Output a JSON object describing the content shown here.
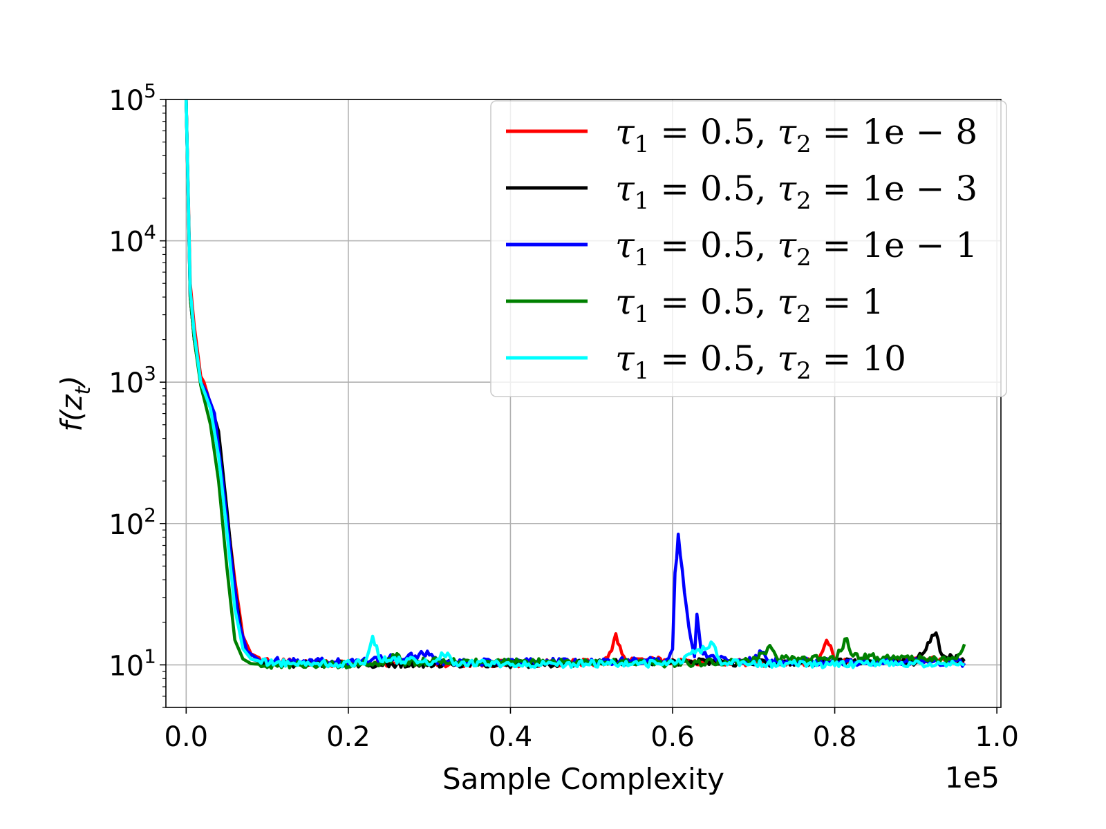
{
  "chart_data": {
    "type": "line",
    "title": "",
    "xlabel": "Sample Complexity",
    "ylabel": "f(z_t)",
    "x_offset_label": "1e5",
    "xlim": [
      -0.025,
      1.005
    ],
    "ylim": [
      5,
      100000
    ],
    "yscale": "log",
    "grid": true,
    "legend_position": "top-right",
    "x_ticks": [
      0.0,
      0.2,
      0.4,
      0.6,
      0.8,
      1.0
    ],
    "x_tick_labels": [
      "0.0",
      "0.2",
      "0.4",
      "0.6",
      "0.8",
      "1.0"
    ],
    "y_ticks": [
      10,
      100,
      1000,
      10000,
      100000
    ],
    "y_tick_labels": [
      {
        "base": "10",
        "exp": "1"
      },
      {
        "base": "10",
        "exp": "2"
      },
      {
        "base": "10",
        "exp": "3"
      },
      {
        "base": "10",
        "exp": "4"
      },
      {
        "base": "10",
        "exp": "5"
      }
    ],
    "series": [
      {
        "name": "τ1 = 0.5, τ2 = 1e − 8",
        "legend": {
          "tau1": "0.5",
          "tau2": "1e − 8"
        },
        "color": "#ff0000",
        "points": [
          [
            0.0,
            100000
          ],
          [
            0.005,
            5000
          ],
          [
            0.01,
            2500
          ],
          [
            0.018,
            1100
          ],
          [
            0.022,
            1000
          ],
          [
            0.03,
            700
          ],
          [
            0.04,
            350
          ],
          [
            0.05,
            120
          ],
          [
            0.06,
            40
          ],
          [
            0.07,
            16
          ],
          [
            0.08,
            12
          ],
          [
            0.1,
            10.5
          ],
          [
            0.2,
            10.2
          ],
          [
            0.3,
            10.3
          ],
          [
            0.4,
            10.2
          ],
          [
            0.5,
            10.4
          ],
          [
            0.52,
            10.8
          ],
          [
            0.53,
            16
          ],
          [
            0.54,
            11
          ],
          [
            0.6,
            10.6
          ],
          [
            0.7,
            10.3
          ],
          [
            0.78,
            10.5
          ],
          [
            0.79,
            15.5
          ],
          [
            0.8,
            10.8
          ],
          [
            0.9,
            10.6
          ],
          [
            0.93,
            10.9
          ],
          [
            0.96,
            10.4
          ]
        ]
      },
      {
        "name": "τ1 = 0.5, τ2 = 1e − 3",
        "legend": {
          "tau1": "0.5",
          "tau2": "1e − 3"
        },
        "color": "#000000",
        "points": [
          [
            0.0,
            100000
          ],
          [
            0.005,
            4000
          ],
          [
            0.01,
            2000
          ],
          [
            0.018,
            1000
          ],
          [
            0.03,
            700
          ],
          [
            0.04,
            450
          ],
          [
            0.05,
            130
          ],
          [
            0.06,
            35
          ],
          [
            0.07,
            14
          ],
          [
            0.08,
            11
          ],
          [
            0.1,
            10.2
          ],
          [
            0.2,
            10.1
          ],
          [
            0.3,
            10.2
          ],
          [
            0.4,
            10.1
          ],
          [
            0.5,
            10.3
          ],
          [
            0.6,
            10.5
          ],
          [
            0.7,
            10.3
          ],
          [
            0.8,
            10.4
          ],
          [
            0.9,
            10.5
          ],
          [
            0.925,
            17.5
          ],
          [
            0.93,
            12
          ],
          [
            0.94,
            11.5
          ],
          [
            0.96,
            10.6
          ]
        ]
      },
      {
        "name": "τ1 = 0.5, τ2 = 1e − 1",
        "legend": {
          "tau1": "0.5",
          "tau2": "1e − 1"
        },
        "color": "#0000ff",
        "points": [
          [
            0.0,
            100000
          ],
          [
            0.005,
            4000
          ],
          [
            0.01,
            2000
          ],
          [
            0.018,
            1000
          ],
          [
            0.025,
            850
          ],
          [
            0.035,
            600
          ],
          [
            0.045,
            200
          ],
          [
            0.055,
            60
          ],
          [
            0.065,
            20
          ],
          [
            0.075,
            12.5
          ],
          [
            0.09,
            10.8
          ],
          [
            0.2,
            10.4
          ],
          [
            0.3,
            12
          ],
          [
            0.31,
            10.5
          ],
          [
            0.4,
            10.5
          ],
          [
            0.5,
            10.5
          ],
          [
            0.59,
            10.8
          ],
          [
            0.6,
            12.5
          ],
          [
            0.603,
            43
          ],
          [
            0.607,
            80
          ],
          [
            0.612,
            45
          ],
          [
            0.62,
            18
          ],
          [
            0.627,
            12
          ],
          [
            0.63,
            23
          ],
          [
            0.635,
            12
          ],
          [
            0.65,
            11
          ],
          [
            0.7,
            10.6
          ],
          [
            0.71,
            12.5
          ],
          [
            0.72,
            10.6
          ],
          [
            0.8,
            10.5
          ],
          [
            0.9,
            10.6
          ],
          [
            0.96,
            10.3
          ]
        ]
      },
      {
        "name": "τ1 = 0.5, τ2 = 1",
        "legend": {
          "tau1": "0.5",
          "tau2": "1"
        },
        "color": "#008000",
        "points": [
          [
            0.0,
            100000
          ],
          [
            0.005,
            4000
          ],
          [
            0.01,
            2000
          ],
          [
            0.018,
            950
          ],
          [
            0.03,
            500
          ],
          [
            0.04,
            200
          ],
          [
            0.05,
            50
          ],
          [
            0.06,
            15
          ],
          [
            0.07,
            11
          ],
          [
            0.08,
            10.2
          ],
          [
            0.1,
            10.0
          ],
          [
            0.2,
            10.1
          ],
          [
            0.25,
            10.5
          ],
          [
            0.26,
            12
          ],
          [
            0.27,
            10.4
          ],
          [
            0.3,
            10.6
          ],
          [
            0.4,
            10.4
          ],
          [
            0.5,
            10.5
          ],
          [
            0.6,
            10.2
          ],
          [
            0.7,
            10.7
          ],
          [
            0.72,
            13
          ],
          [
            0.73,
            11
          ],
          [
            0.8,
            11
          ],
          [
            0.815,
            15.5
          ],
          [
            0.82,
            11.5
          ],
          [
            0.9,
            11
          ],
          [
            0.95,
            10.8
          ],
          [
            0.96,
            14
          ]
        ]
      },
      {
        "name": "τ1 = 0.5, τ2 = 10",
        "legend": {
          "tau1": "0.5",
          "tau2": "10"
        },
        "color": "#00ffff",
        "points": [
          [
            0.0,
            100000
          ],
          [
            0.005,
            4500
          ],
          [
            0.01,
            2200
          ],
          [
            0.018,
            1000
          ],
          [
            0.03,
            650
          ],
          [
            0.04,
            300
          ],
          [
            0.05,
            90
          ],
          [
            0.06,
            25
          ],
          [
            0.07,
            13
          ],
          [
            0.08,
            11
          ],
          [
            0.1,
            10.3
          ],
          [
            0.2,
            10.2
          ],
          [
            0.22,
            10.5
          ],
          [
            0.23,
            15.5
          ],
          [
            0.24,
            11
          ],
          [
            0.3,
            10.5
          ],
          [
            0.32,
            12
          ],
          [
            0.33,
            10.3
          ],
          [
            0.4,
            10.1
          ],
          [
            0.5,
            10.2
          ],
          [
            0.6,
            10.2
          ],
          [
            0.65,
            14
          ],
          [
            0.66,
            10.4
          ],
          [
            0.7,
            10.2
          ],
          [
            0.8,
            10.1
          ],
          [
            0.9,
            10.3
          ],
          [
            0.96,
            10.0
          ]
        ]
      }
    ]
  }
}
